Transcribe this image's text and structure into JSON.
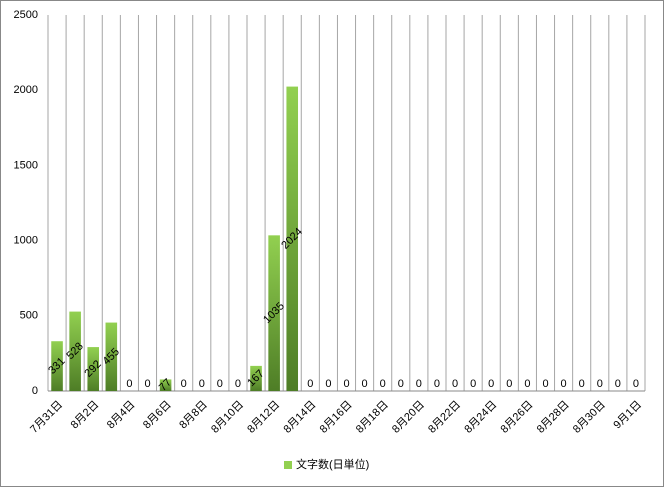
{
  "chart_data": {
    "type": "bar",
    "categories": [
      "7月31日",
      null,
      "8月2日",
      null,
      "8月4日",
      null,
      "8月6日",
      null,
      "8月8日",
      null,
      "8月10日",
      null,
      "8月12日",
      null,
      "8月14日",
      null,
      "8月16日",
      null,
      "8月18日",
      null,
      "8月20日",
      null,
      "8月22日",
      null,
      "8月24日",
      null,
      "8月26日",
      null,
      "8月28日",
      null,
      "8月30日",
      null,
      "9月1日"
    ],
    "series": [
      {
        "name": "文字数(日単位)",
        "color": "#92d050",
        "values": [
          331,
          528,
          292,
          455,
          0,
          0,
          77,
          0,
          0,
          0,
          0,
          167,
          1035,
          2024,
          0,
          0,
          0,
          0,
          0,
          0,
          0,
          0,
          0,
          0,
          0,
          0,
          0,
          0,
          0,
          0,
          0,
          0,
          0
        ]
      }
    ],
    "ylim": [
      0,
      2500
    ],
    "yticks": [
      0,
      500,
      1000,
      1500,
      2000,
      2500
    ],
    "grid": true,
    "legend": "bottom"
  }
}
